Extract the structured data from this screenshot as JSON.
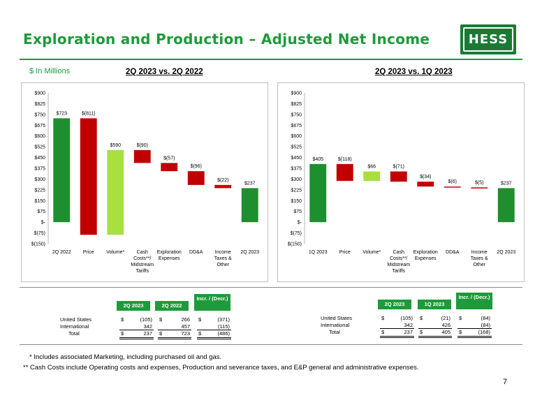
{
  "page": {
    "title": "Exploration and Production – Adjusted Net Income",
    "logo_text": "HESS",
    "units": "$ In Millions",
    "page_number": "7",
    "colors": {
      "increase": "#1e8e2e",
      "decrease": "#c00000",
      "volume": "#a8e040",
      "brand": "#1f9a3a"
    }
  },
  "chart_data": [
    {
      "type": "bar",
      "subtype": "waterfall",
      "title": "2Q 2023 vs. 2Q 2022",
      "categories": [
        "2Q 2022",
        "Price",
        "Volume*",
        "Cash Costs**/ Midstream Tariffs",
        "Exploration Expenses",
        "DD&A",
        "Income Taxes & Other",
        "2Q 2023"
      ],
      "values": [
        723,
        -811,
        590,
        -90,
        -57,
        -96,
        -22,
        237
      ],
      "data_labels": [
        "$723",
        "$(811)",
        "$590",
        "$(90)",
        "$(57)",
        "$(96)",
        "$(22)",
        "$237"
      ],
      "yticks": [
        "$900",
        "$825",
        "$750",
        "$675",
        "$600",
        "$525",
        "$450",
        "$375",
        "$300",
        "$225",
        "$150",
        "$75",
        "$-",
        "$(75)",
        "$(150)"
      ],
      "ylim": [
        -150,
        900
      ]
    },
    {
      "type": "bar",
      "subtype": "waterfall",
      "title": "2Q 2023 vs. 1Q 2023",
      "categories": [
        "1Q 2023",
        "Price",
        "Volume*",
        "Cash Costs**/ Midstream Tariffs",
        "Exploration Expenses",
        "DD&A",
        "Income Taxes & Other",
        "2Q 2023"
      ],
      "values": [
        405,
        -118,
        66,
        -71,
        -34,
        -6,
        -5,
        237
      ],
      "data_labels": [
        "$405",
        "$(118)",
        "$66",
        "$(71)",
        "$(34)",
        "$(6)",
        "$(5)",
        "$237"
      ],
      "yticks": [
        "$900",
        "$825",
        "$750",
        "$675",
        "$600",
        "$525",
        "$450",
        "$375",
        "$300",
        "$225",
        "$150",
        "$75",
        "$-",
        "$(75)",
        "$(150)"
      ],
      "ylim": [
        -150,
        900
      ]
    }
  ],
  "tables": [
    {
      "headers": [
        "2Q 2023",
        "2Q 2022",
        "Incr. / (Decr.)"
      ],
      "rows": [
        {
          "label": "United States",
          "c1s": "$",
          "c1": "(105)",
          "c2s": "$",
          "c2": "266",
          "c3s": "$",
          "c3": "(371)"
        },
        {
          "label": "International",
          "c1s": "",
          "c1": "342",
          "c2s": "",
          "c2": "457",
          "c3s": "",
          "c3": "(115)"
        },
        {
          "label": "Total",
          "c1s": "$",
          "c1": "237",
          "c2s": "$",
          "c2": "723",
          "c3s": "$",
          "c3": "(486)"
        }
      ]
    },
    {
      "headers": [
        "2Q 2023",
        "1Q 2023",
        "Incr. / (Decr.)"
      ],
      "rows": [
        {
          "label": "United States",
          "c1s": "$",
          "c1": "(105)",
          "c2s": "$",
          "c2": "(21)",
          "c3s": "$",
          "c3": "(84)"
        },
        {
          "label": "International",
          "c1s": "",
          "c1": "342",
          "c2s": "",
          "c2": "426",
          "c3s": "",
          "c3": "(84)"
        },
        {
          "label": "Total",
          "c1s": "$",
          "c1": "237",
          "c2s": "$",
          "c2": "405",
          "c3s": "$",
          "c3": "(168)"
        }
      ]
    }
  ],
  "footnotes": [
    "* Includes associated Marketing, including purchased oil and gas.",
    "** Cash Costs include Operating costs and expenses, Production and severance taxes, and E&P general and administrative expenses."
  ]
}
